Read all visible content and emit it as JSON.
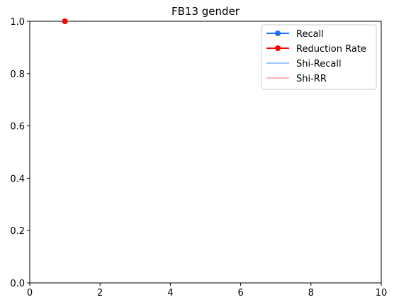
{
  "chart_data": {
    "type": "line",
    "title": "FB13 gender",
    "xlabel": "",
    "ylabel": "",
    "xlim": [
      0,
      10
    ],
    "ylim": [
      0.0,
      1.0
    ],
    "x_ticks": [
      "0",
      "2",
      "4",
      "6",
      "8",
      "10"
    ],
    "y_ticks": [
      "0.0",
      "0.2",
      "0.4",
      "0.6",
      "0.8",
      "1.0"
    ],
    "grid": false,
    "legend_position": "top-right",
    "series": [
      {
        "name": "Recall",
        "color": "#1f6fff",
        "marker": "circle",
        "x": [
          1
        ],
        "y": [
          1.0
        ]
      },
      {
        "name": "Reduction Rate",
        "color": "#ff0000",
        "marker": "circle",
        "x": [
          1
        ],
        "y": [
          1.0
        ]
      },
      {
        "name": "Shi-Recall",
        "color": "#7fb0ff",
        "marker": "none",
        "x": [],
        "y": []
      },
      {
        "name": "Shi-RR",
        "color": "#ff9a9a",
        "marker": "none",
        "x": [],
        "y": []
      }
    ]
  }
}
